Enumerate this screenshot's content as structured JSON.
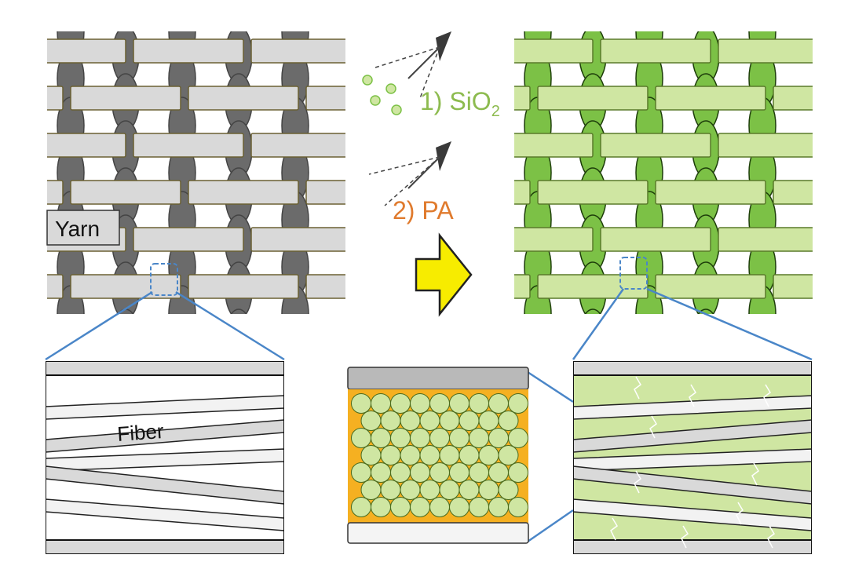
{
  "labels": {
    "yarn": "Yarn",
    "fiber": "Fiber",
    "step1_prefix": "1) SiO",
    "step1_subscript": "2",
    "step2": "2) PA"
  },
  "colors": {
    "uncoated_warp": "#6b6b6b",
    "uncoated_weft": "#d9d9d9",
    "coated_warp": "#7cc146",
    "coated_weft": "#cfe6a2",
    "step1_text": "#8dbb4f",
    "step2_text": "#e07b2e",
    "arrow_fill": "#f7ec00",
    "zoom_line": "#4a86c8",
    "particle_bg": "#f5b021",
    "particle": "#cfe6a2"
  },
  "icons": {
    "spray_1": "spray-nozzle-icon",
    "spray_2": "spray-nozzle-icon",
    "process_arrow": "right-arrow-icon"
  }
}
